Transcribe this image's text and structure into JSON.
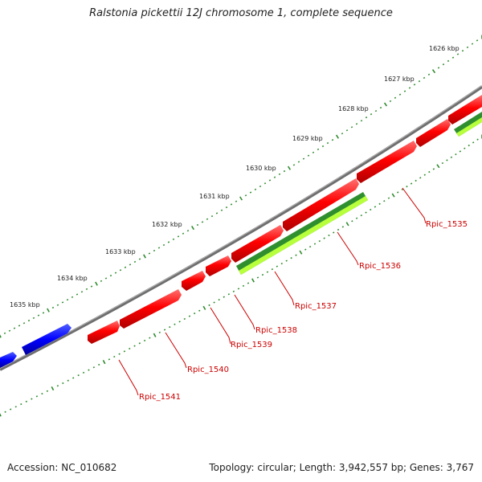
{
  "title": "Ralstonia pickettii 12J chromosome 1, complete sequence",
  "footer": {
    "accession": "Accession: NC_010682",
    "summary": "Topology: circular; Length: 3,942,557 bp; Genes: 3,767"
  },
  "colors": {
    "forward_strand": "#ff0000",
    "reverse_strand_blue": "#0000ff",
    "rna_dark": "#2f8f2f",
    "rna_light": "#adff2f",
    "backbone": "#808080",
    "ticks": "#2e8b2e",
    "label": "#cc0000"
  },
  "ruler": [
    {
      "label": "1626 kbp"
    },
    {
      "label": "1627 kbp"
    },
    {
      "label": "1628 kbp"
    },
    {
      "label": "1629 kbp"
    },
    {
      "label": "1630 kbp"
    },
    {
      "label": "1631 kbp"
    },
    {
      "label": "1632 kbp"
    },
    {
      "label": "1633 kbp"
    },
    {
      "label": "1634 kbp"
    },
    {
      "label": "1635 kbp"
    }
  ],
  "genes": [
    {
      "label": "Rpic_1535"
    },
    {
      "label": "Rpic_1536"
    },
    {
      "label": "Rpic_1537"
    },
    {
      "label": "Rpic_1538"
    },
    {
      "label": "Rpic_1539"
    },
    {
      "label": "Rpic_1540"
    },
    {
      "label": "Rpic_1541"
    }
  ]
}
